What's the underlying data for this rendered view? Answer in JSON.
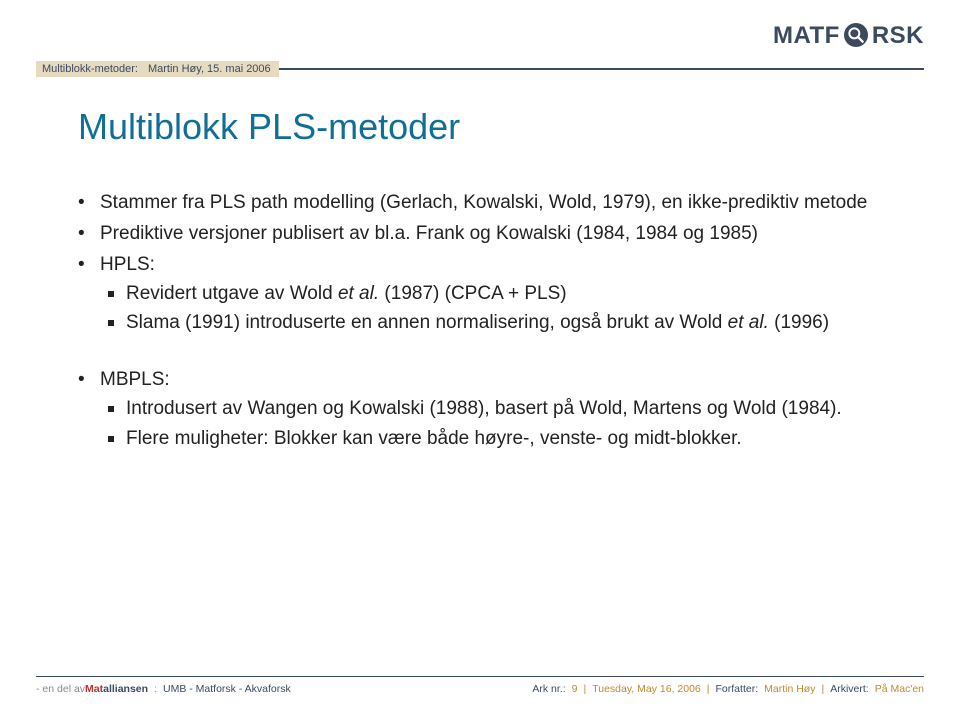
{
  "header": {
    "breadcrumb_left": "Multiblokk-metoder:",
    "breadcrumb_right": "Martin Høy, 15. mai 2006",
    "logo_pre": "MATF",
    "logo_post": "RSK"
  },
  "title": "Multiblokk PLS-metoder",
  "body": {
    "group1": [
      {
        "text": "Stammer fra PLS path modelling (Gerlach, Kowalski, Wold, 1979), en ikke-prediktiv metode"
      },
      {
        "text_pre": "Prediktive versjoner publisert av bl.a. Frank og Kowalski (1984, 1984 og 1985)"
      },
      {
        "text": "HPLS:",
        "sub": [
          {
            "pre": "Revidert utgave av Wold ",
            "em": "et al.",
            "post": " (1987) (CPCA + PLS)"
          },
          {
            "pre": "Slama (1991) introduserte en annen normalisering, også brukt av Wold ",
            "em": "et al.",
            "post": " (1996)"
          }
        ]
      }
    ],
    "group2": [
      {
        "text": "MBPLS:",
        "sub": [
          {
            "pre": "Introdusert av Wangen og Kowalski (1988), basert på Wold, Martens og Wold (1984)."
          },
          {
            "pre": "Flere muligheter: Blokker kan være både høyre-, venste- og midt-blokker."
          }
        ]
      }
    ]
  },
  "footer": {
    "left_dim": "- en del av ",
    "left_brand_mat": "Mat",
    "left_brand_allian": "alliansen",
    "left_rest": "UMB - Matforsk - Akvaforsk",
    "right_ark_label": "Ark nr.:",
    "right_ark_no": "9",
    "right_date": "Tuesday, May 16, 2006",
    "right_author_label": "Forfatter:",
    "right_author": "Martin Høy",
    "right_archive_label": "Arkivert:",
    "right_archive": "På Mac'en"
  }
}
